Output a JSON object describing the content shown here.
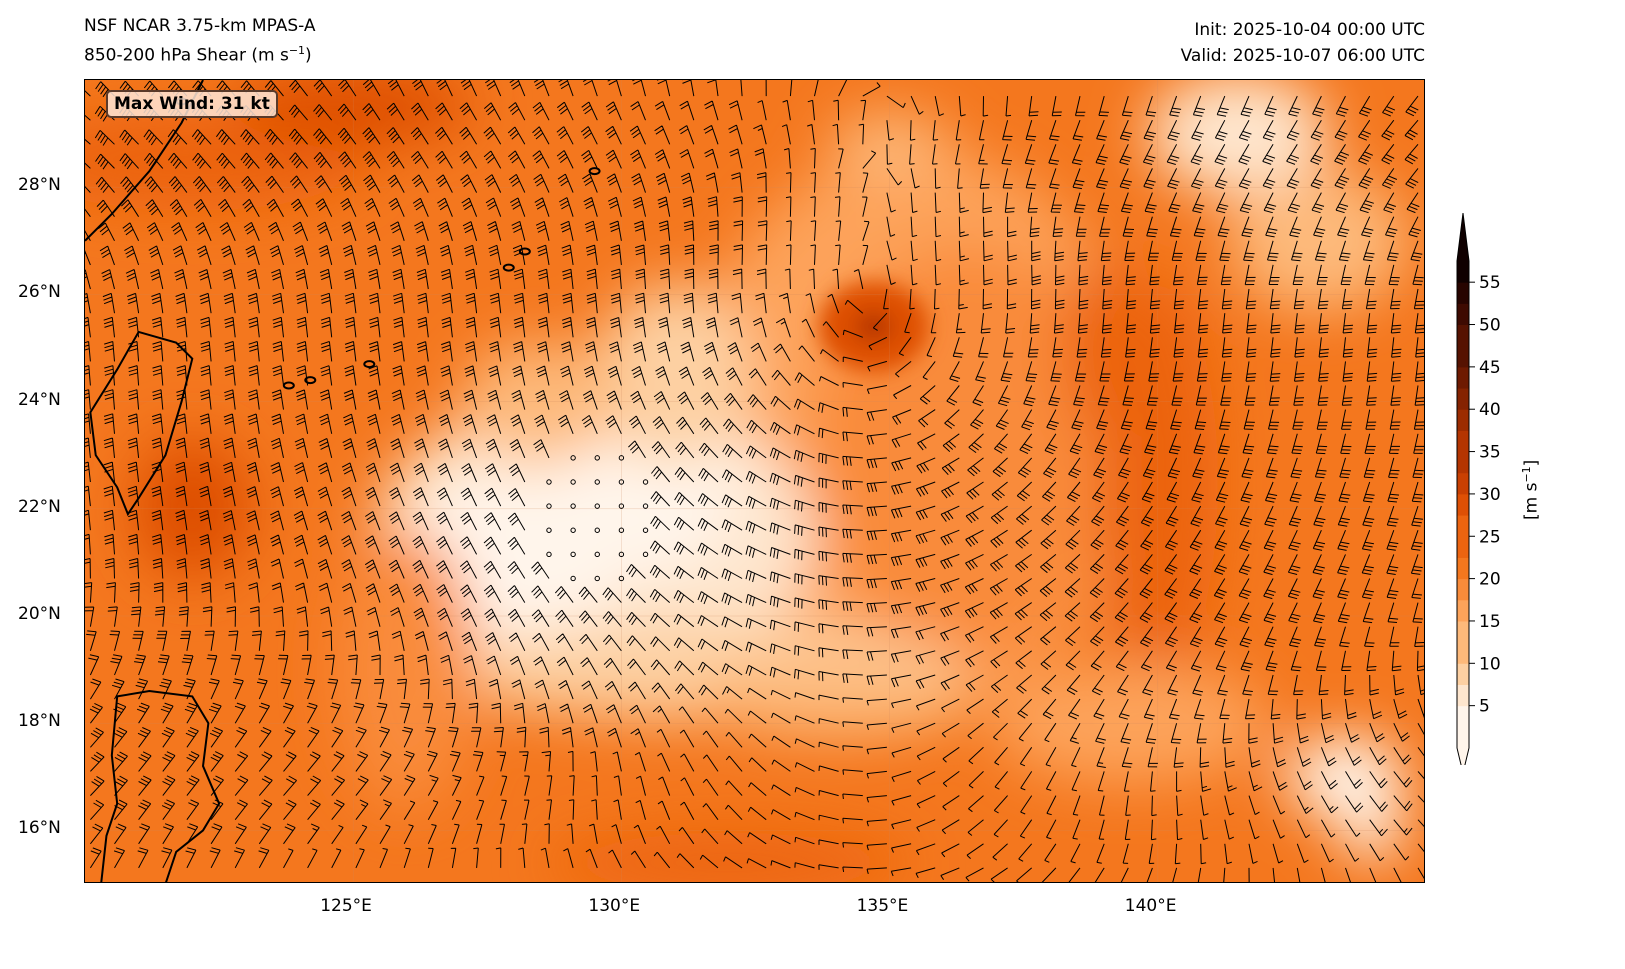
{
  "header": {
    "title_line1": "NSF NCAR 3.75-km MPAS-A",
    "title_line2_main": "850-200 hPa Shear (m s",
    "title_line2_sup": "−1",
    "title_line2_end": ")",
    "init": "Init: 2025-10-04 00:00 UTC",
    "valid": "Valid: 2025-10-07 06:00 UTC"
  },
  "annotation": {
    "max_wind": "Max Wind: 31 kt"
  },
  "axes": {
    "lat_ticks": [
      "28°N",
      "26°N",
      "24°N",
      "22°N",
      "20°N",
      "18°N",
      "16°N"
    ],
    "lon_ticks": [
      "125°E",
      "130°E",
      "135°E",
      "140°E"
    ],
    "lon_range": [
      120,
      145
    ],
    "lat_range": [
      15,
      30
    ]
  },
  "colorbar": {
    "ticks": [
      "55",
      "50",
      "45",
      "40",
      "35",
      "30",
      "25",
      "20",
      "15",
      "10",
      "5"
    ],
    "label_main": "[m s",
    "label_sup": "−1",
    "label_end": "]",
    "range": [
      0,
      57.5
    ],
    "colors": [
      "#fff5eb",
      "#fee6ce",
      "#fdd0a2",
      "#fdb97a",
      "#fda35a",
      "#f98b3a",
      "#f4771e",
      "#ec6410",
      "#de5005",
      "#c94002",
      "#b43501",
      "#9c2c01",
      "#852301",
      "#6e1a01",
      "#561201",
      "#3e0a01",
      "#270400",
      "#100000"
    ]
  },
  "chart_data": {
    "type": "heatmap",
    "title": "850-200 hPa Shear (m s-1)",
    "variable": "wind shear magnitude with wind barbs",
    "xlabel": "",
    "ylabel": "",
    "xlim": [
      120,
      145
    ],
    "ylim": [
      15,
      30
    ],
    "features": [
      {
        "name": "vortex center",
        "lon": 134.5,
        "lat": 25.5,
        "shear_ms": 30
      },
      {
        "name": "low-shear region",
        "lon": 129.5,
        "lat": 21.5,
        "shear_ms": 2
      },
      {
        "name": "shear maximum ring east",
        "lon": 139.5,
        "lat": 22.5,
        "shear_ms": 22
      }
    ]
  }
}
